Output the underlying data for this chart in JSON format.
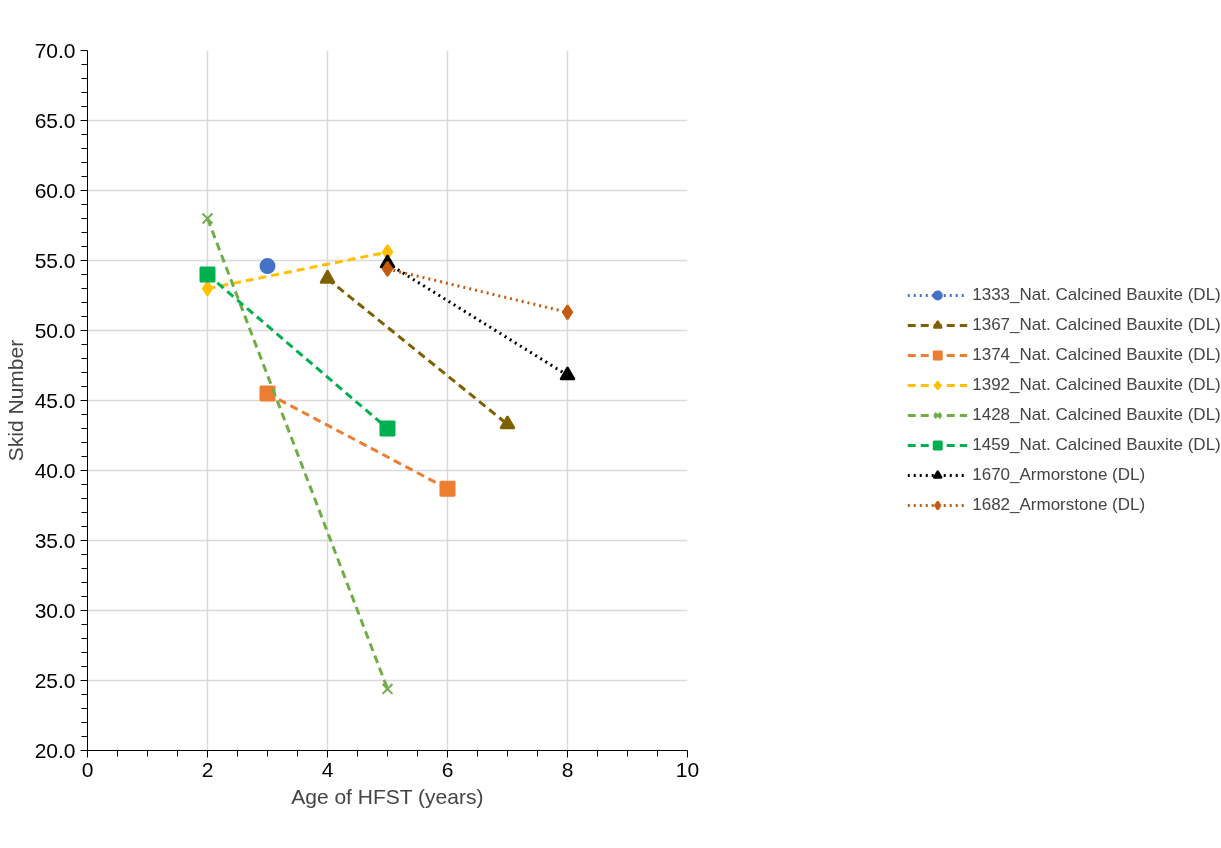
{
  "chart_data": {
    "type": "line",
    "xlabel": "Age of HFST (years)",
    "ylabel": "Skid Number",
    "xlim": [
      0,
      10
    ],
    "xticks": [
      0,
      2,
      4,
      6,
      8,
      10
    ],
    "ylim": [
      20,
      70
    ],
    "yticks": [
      {
        "value": 20,
        "label": "20.0"
      },
      {
        "value": 25,
        "label": "25.0"
      },
      {
        "value": 30,
        "label": "30.0"
      },
      {
        "value": 35,
        "label": "35.0"
      },
      {
        "value": 40,
        "label": "40.0"
      },
      {
        "value": 45,
        "label": "45.0"
      },
      {
        "value": 50,
        "label": "50.0"
      },
      {
        "value": 55,
        "label": "55.0"
      },
      {
        "value": 60,
        "label": "60.0"
      },
      {
        "value": 65,
        "label": "65.0"
      },
      {
        "value": 70,
        "label": "70.0"
      }
    ],
    "grid": true,
    "legend": "right",
    "series": [
      {
        "name": "1333_Nat. Calcined Bauxite (DL)",
        "color": "#4472c4",
        "x": [
          3
        ],
        "values": [
          54.6
        ],
        "marker": "circle",
        "line_style": "dotted"
      },
      {
        "name": "1367_Nat. Calcined Bauxite (DL)",
        "color": "#7f6000",
        "x": [
          4,
          7
        ],
        "values": [
          53.7,
          43.3
        ],
        "marker": "triangle",
        "line_style": "dashed"
      },
      {
        "name": "1374_Nat. Calcined Bauxite (DL)",
        "color": "#ed7d31",
        "x": [
          3,
          6
        ],
        "values": [
          45.5,
          38.7
        ],
        "marker": "square",
        "line_style": "dashed"
      },
      {
        "name": "1392_Nat. Calcined Bauxite (DL)",
        "color": "#ffc000",
        "x": [
          2,
          5
        ],
        "values": [
          53.0,
          55.6
        ],
        "marker": "diamond",
        "line_style": "dashed"
      },
      {
        "name": "1428_Nat. Calcined Bauxite (DL)",
        "color": "#70ad47",
        "x": [
          2,
          5
        ],
        "values": [
          58.0,
          24.4
        ],
        "marker": "cross",
        "line_style": "dashed"
      },
      {
        "name": "1459_Nat. Calcined Bauxite (DL)",
        "color": "#00b050",
        "x": [
          2,
          5
        ],
        "values": [
          54.0,
          43.0
        ],
        "marker": "square",
        "line_style": "dashed"
      },
      {
        "name": "1670_Armorstone (DL)",
        "color": "#000000",
        "x": [
          5,
          8
        ],
        "values": [
          54.8,
          46.8
        ],
        "marker": "triangle",
        "line_style": "dotted"
      },
      {
        "name": "1682_Armorstone (DL)",
        "color": "#c55a11",
        "x": [
          5,
          8
        ],
        "values": [
          54.4,
          51.3
        ],
        "marker": "diamond",
        "line_style": "dotted"
      }
    ]
  }
}
